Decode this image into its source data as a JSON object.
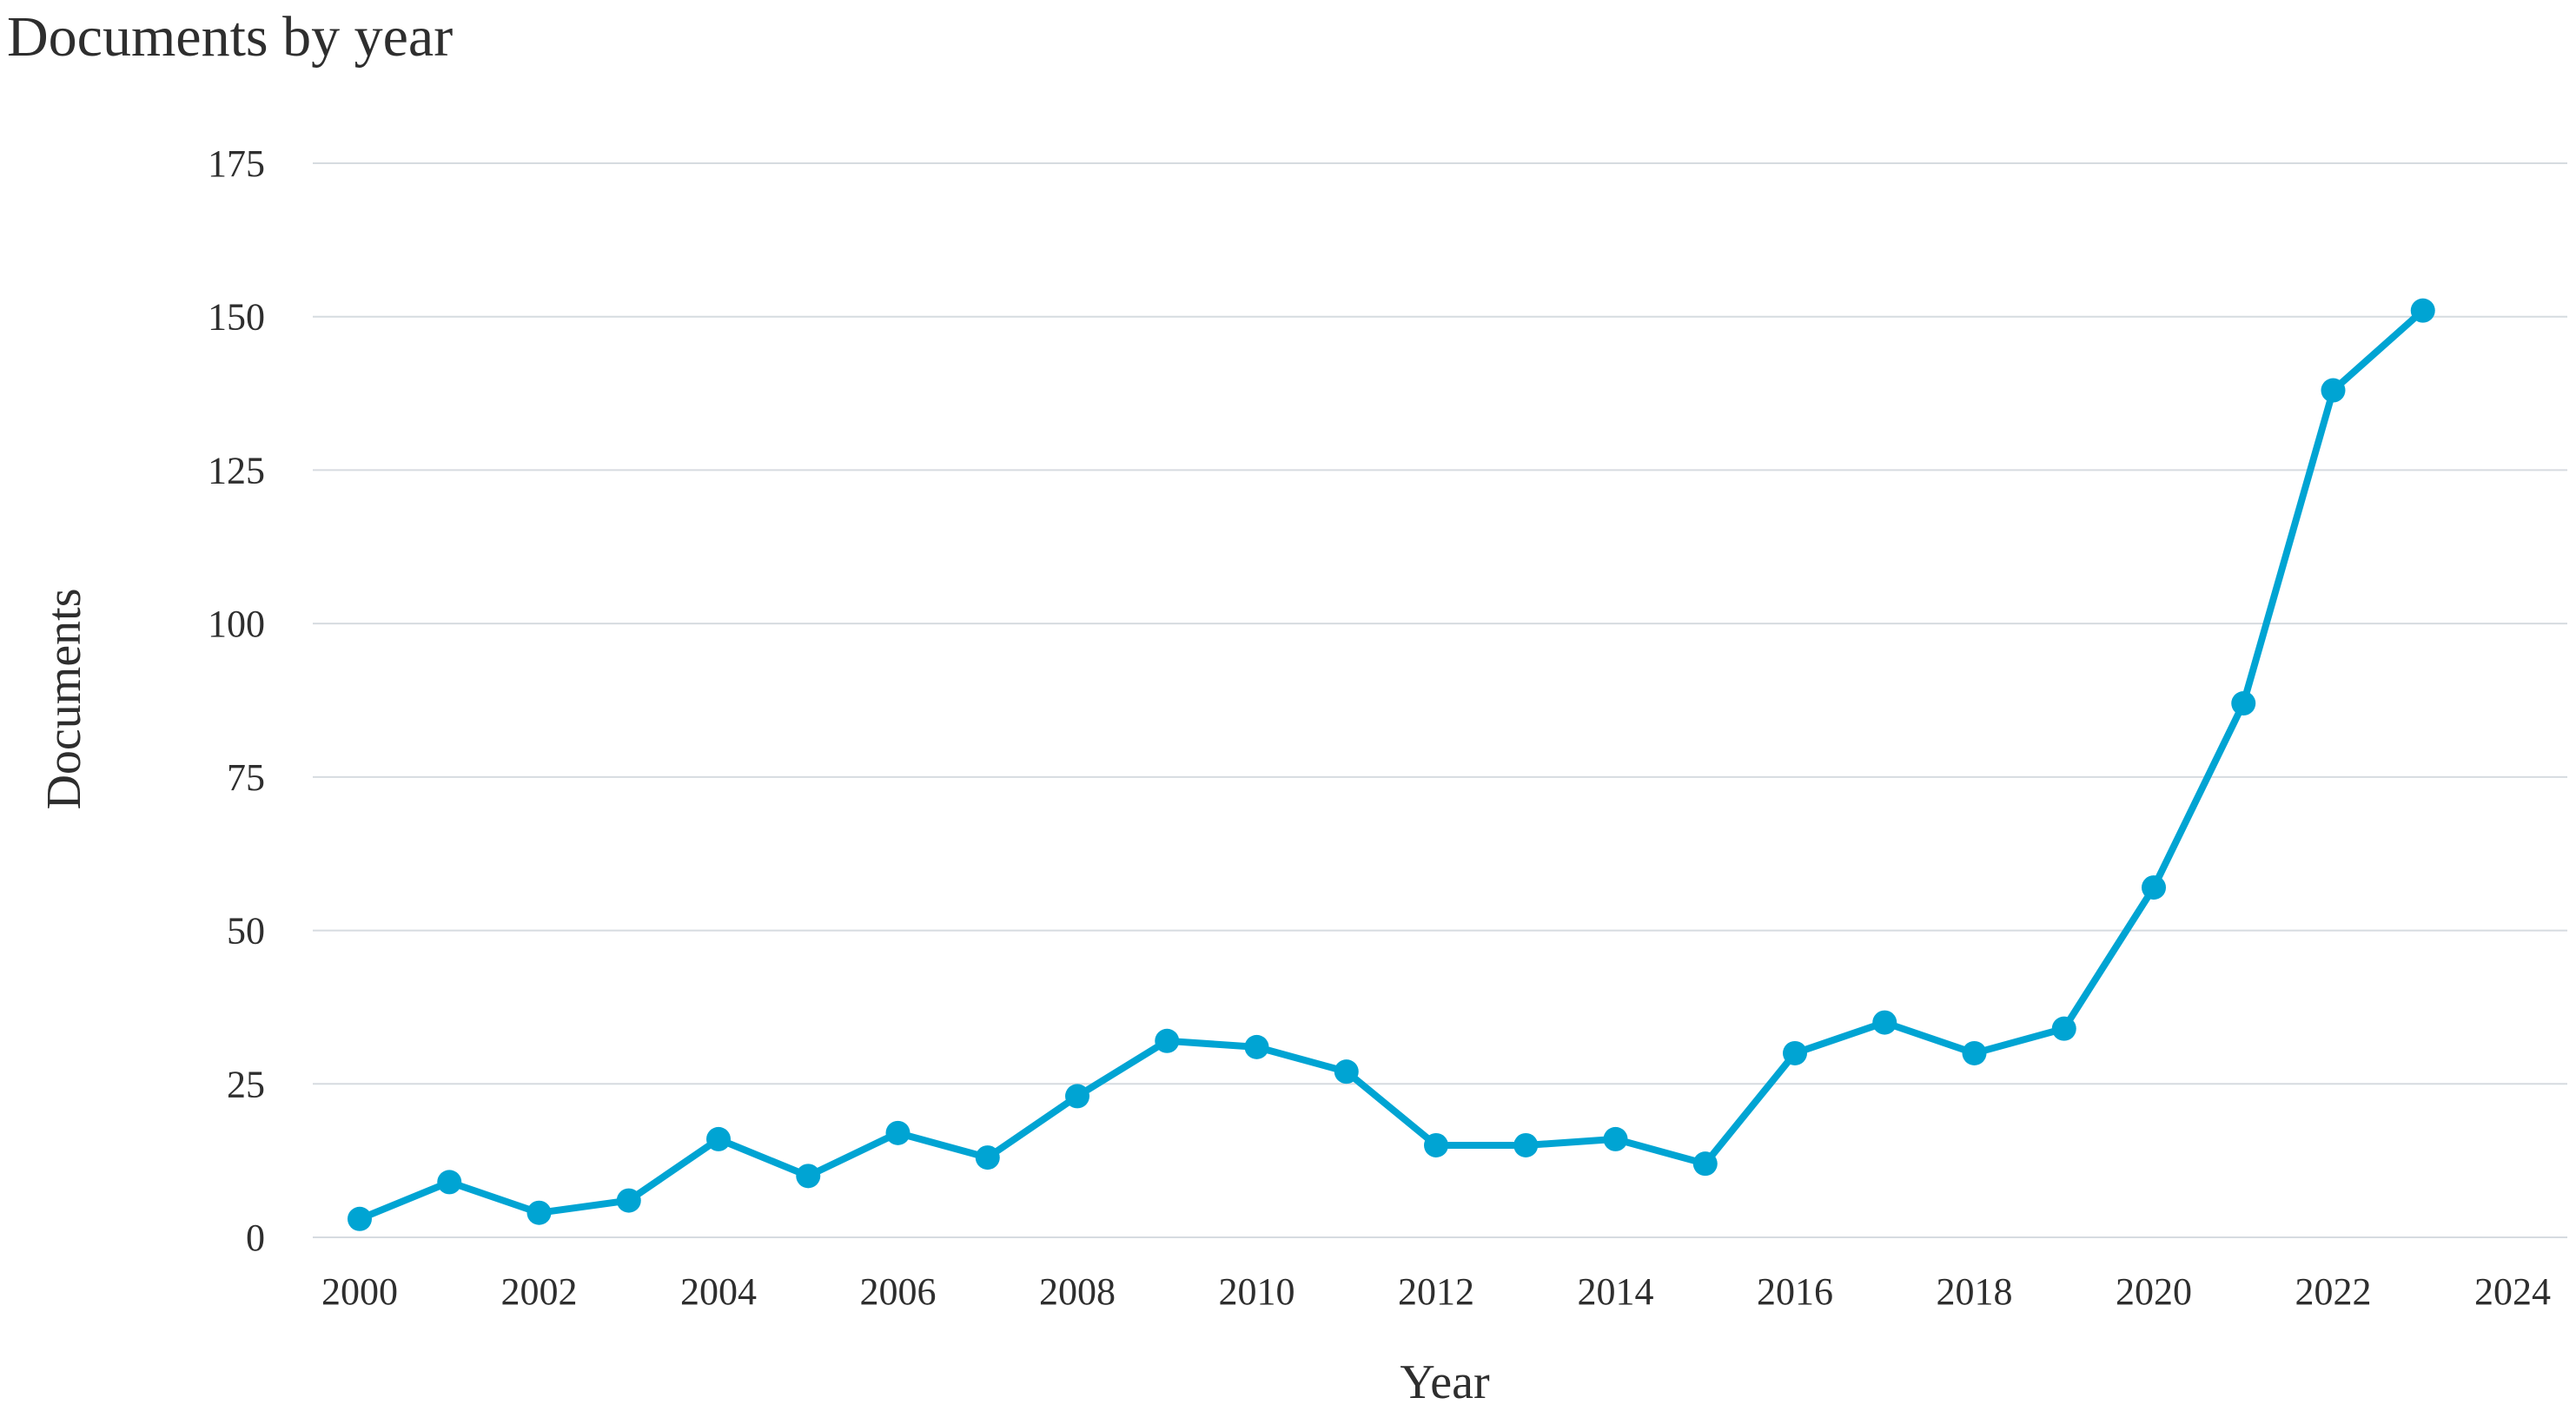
{
  "chart_data": {
    "type": "line",
    "title": "Documents by year",
    "xlabel": "Year",
    "ylabel": "Documents",
    "xlim": [
      2000,
      2024
    ],
    "ylim": [
      0,
      175
    ],
    "x_ticks": [
      2000,
      2002,
      2004,
      2006,
      2008,
      2010,
      2012,
      2014,
      2016,
      2018,
      2020,
      2022,
      2024
    ],
    "y_ticks": [
      0,
      25,
      50,
      75,
      100,
      125,
      150,
      175
    ],
    "grid": true,
    "series": [
      {
        "color": "#00a4d3",
        "points": [
          {
            "x": 2000,
            "y": 3
          },
          {
            "x": 2001,
            "y": 9
          },
          {
            "x": 2002,
            "y": 4
          },
          {
            "x": 2003,
            "y": 6
          },
          {
            "x": 2004,
            "y": 16
          },
          {
            "x": 2005,
            "y": 10
          },
          {
            "x": 2006,
            "y": 17
          },
          {
            "x": 2007,
            "y": 13
          },
          {
            "x": 2008,
            "y": 23
          },
          {
            "x": 2009,
            "y": 32
          },
          {
            "x": 2010,
            "y": 31
          },
          {
            "x": 2011,
            "y": 27
          },
          {
            "x": 2012,
            "y": 15
          },
          {
            "x": 2013,
            "y": 15
          },
          {
            "x": 2014,
            "y": 16
          },
          {
            "x": 2015,
            "y": 12
          },
          {
            "x": 2016,
            "y": 30
          },
          {
            "x": 2017,
            "y": 35
          },
          {
            "x": 2018,
            "y": 30
          },
          {
            "x": 2019,
            "y": 34
          },
          {
            "x": 2020,
            "y": 57
          },
          {
            "x": 2021,
            "y": 87
          },
          {
            "x": 2022,
            "y": 138
          },
          {
            "x": 2023,
            "y": 151
          }
        ]
      }
    ]
  }
}
